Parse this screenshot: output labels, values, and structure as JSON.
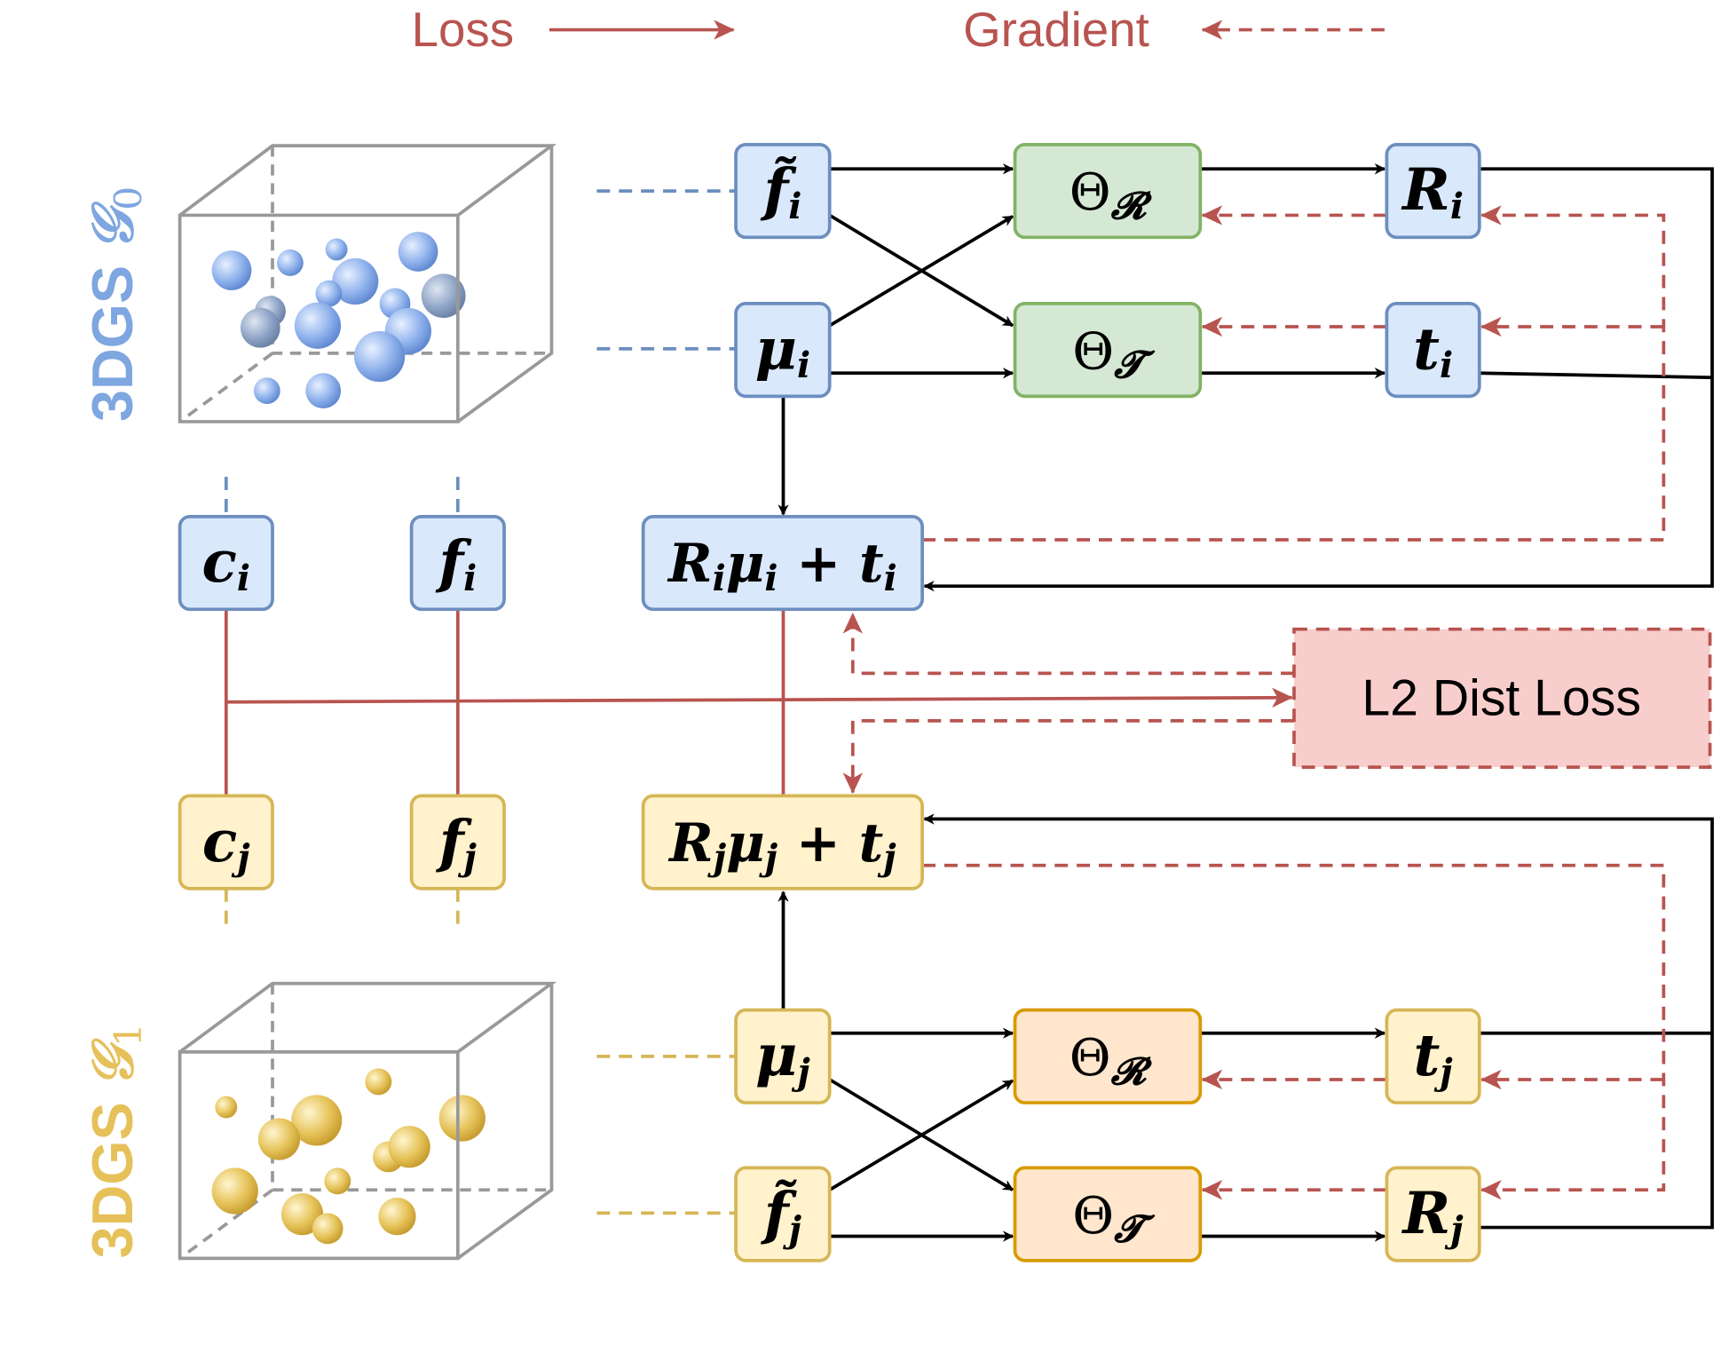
{
  "legend": {
    "loss": "Loss",
    "gradient": "Gradient"
  },
  "colors": {
    "blue_fill": "#dae8fc",
    "blue_stroke": "#6c8ebf",
    "yellow_fill": "#fff2cc",
    "yellow_stroke": "#d6b656",
    "green_fill": "#d5e8d4",
    "green_stroke": "#82b366",
    "orange_fill": "#ffe6cc",
    "orange_stroke": "#d79b00",
    "red": "#b85450",
    "red_fill": "#f8cecc",
    "label_blue": "#7ea6e0",
    "label_yellow": "#e6c15a"
  },
  "groups": {
    "g0": {
      "prefix": "3DGS",
      "symbol": "𝒢",
      "sub": "0"
    },
    "g1": {
      "prefix": "3DGS",
      "symbol": "𝒢",
      "sub": "1"
    }
  },
  "nodes": {
    "ft_i": {
      "main": "f̃",
      "sub": "i"
    },
    "mu_i": {
      "main": "μ",
      "sub": "i"
    },
    "thetaR_0": {
      "main": "Θ",
      "sub": "𝓡"
    },
    "thetaT_0": {
      "main": "Θ",
      "sub": "𝓣"
    },
    "R_i": {
      "main": "R",
      "sub": "i"
    },
    "t_i": {
      "main": "t",
      "sub": "i"
    },
    "c_i": {
      "main": "c",
      "sub": "i"
    },
    "f_i": {
      "main": "f",
      "sub": "i"
    },
    "tr_i": {
      "a": "R",
      "as": "i",
      "b": "μ",
      "bs": "i",
      "plus": " + ",
      "c": "t",
      "cs": "i"
    },
    "loss": {
      "label": "L2 Dist Loss"
    },
    "c_j": {
      "main": "c",
      "sub": "j"
    },
    "f_j": {
      "main": "f",
      "sub": "j"
    },
    "tr_j": {
      "a": "R",
      "as": "j",
      "b": "μ",
      "bs": "j",
      "plus": " + ",
      "c": "t",
      "cs": "j"
    },
    "mu_j": {
      "main": "μ",
      "sub": "j"
    },
    "ft_j": {
      "main": "f̃",
      "sub": "j"
    },
    "thetaR_1": {
      "main": "Θ",
      "sub": "𝓡"
    },
    "thetaT_1": {
      "main": "Θ",
      "sub": "𝓣"
    },
    "t_j": {
      "main": "t",
      "sub": "j"
    },
    "R_j": {
      "main": "R",
      "sub": "j"
    }
  }
}
